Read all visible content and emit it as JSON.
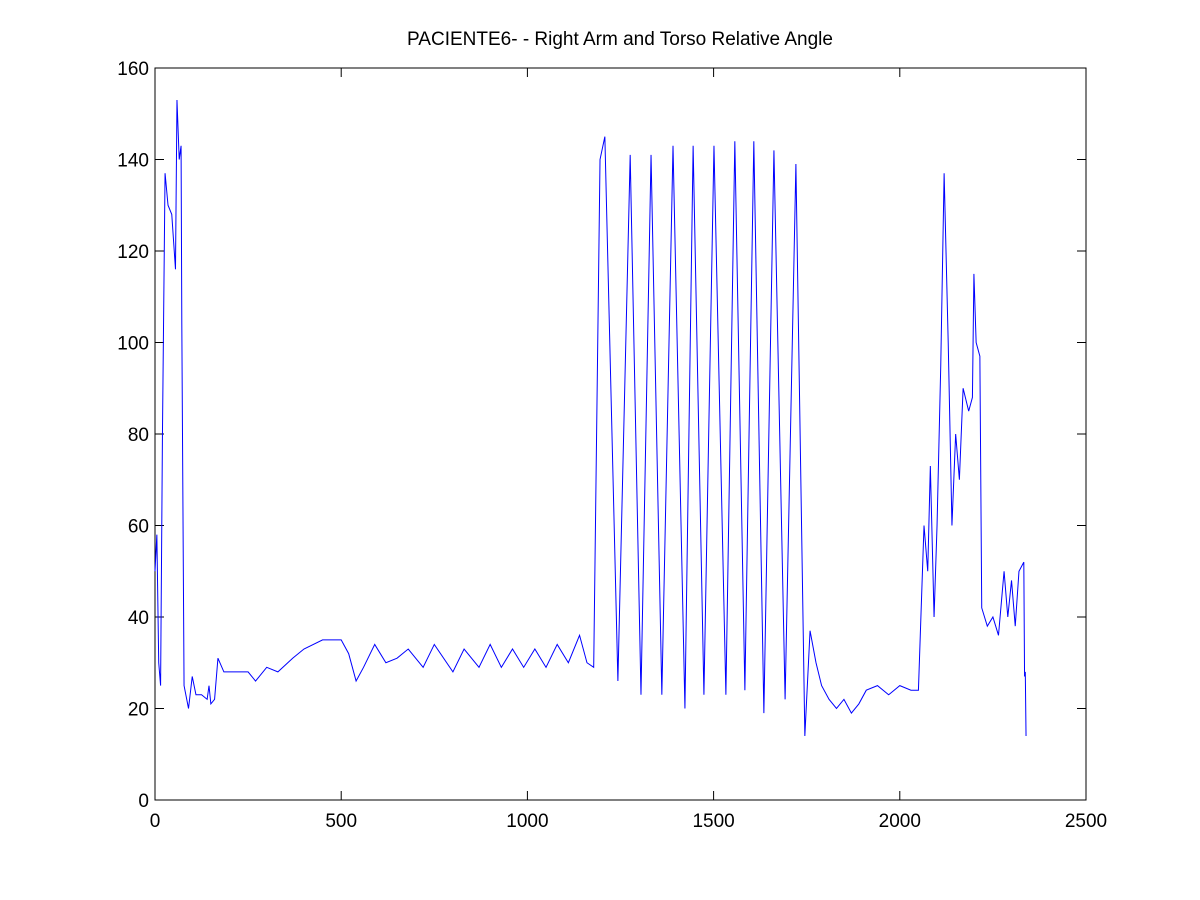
{
  "chart_data": {
    "type": "line",
    "title": "PACIENTE6- - Right Arm and Torso Relative Angle",
    "xlim": [
      0,
      2500
    ],
    "xticks": [
      0,
      500,
      1000,
      1500,
      2000,
      2500
    ],
    "ylim": [
      0,
      160
    ],
    "yticks": [
      0,
      20,
      40,
      60,
      80,
      100,
      120,
      140,
      160
    ],
    "grid": false,
    "series": [
      {
        "color": "#0000ff",
        "x": [
          0,
          5,
          10,
          15,
          20,
          27,
          35,
          45,
          55,
          59,
          65,
          70,
          72,
          78,
          90,
          100,
          110,
          125,
          140,
          145,
          150,
          160,
          169,
          185,
          200,
          250,
          270,
          300,
          330,
          370,
          400,
          450,
          500,
          520,
          540,
          560,
          590,
          620,
          650,
          680,
          720,
          750,
          800,
          830,
          870,
          900,
          930,
          960,
          990,
          1020,
          1050,
          1080,
          1110,
          1140,
          1160,
          1178,
          1195,
          1208,
          1243,
          1276,
          1305,
          1332,
          1361,
          1391,
          1423,
          1445,
          1474,
          1501,
          1533,
          1557,
          1584,
          1608,
          1635,
          1662,
          1692,
          1721,
          1745,
          1759,
          1775,
          1790,
          1810,
          1830,
          1850,
          1870,
          1890,
          1910,
          1940,
          1970,
          2000,
          2030,
          2050,
          2065,
          2075,
          2082,
          2092,
          2100,
          2110,
          2119,
          2130,
          2140,
          2150,
          2160,
          2170,
          2185,
          2195,
          2199,
          2205,
          2215,
          2220,
          2235,
          2250,
          2265,
          2280,
          2290,
          2300,
          2310,
          2320,
          2333,
          2335,
          2337,
          2339
        ],
        "values": [
          50,
          58,
          30,
          25,
          80,
          137,
          130,
          128,
          116,
          153,
          140,
          143,
          104,
          25,
          20,
          27,
          23,
          23,
          22,
          25,
          21,
          22,
          31,
          28,
          28,
          28,
          26,
          29,
          28,
          31,
          33,
          35,
          35,
          32,
          26,
          29,
          34,
          30,
          31,
          33,
          29,
          34,
          28,
          33,
          29,
          34,
          29,
          33,
          29,
          33,
          29,
          34,
          30,
          36,
          30,
          29,
          140,
          145,
          26,
          141,
          23,
          141,
          23,
          143,
          20,
          143,
          23,
          143,
          23,
          144,
          24,
          144,
          19,
          142,
          22,
          139,
          14,
          37,
          30,
          25,
          22,
          20,
          22,
          19,
          21,
          24,
          25,
          23,
          25,
          24,
          24,
          60,
          50,
          73,
          40,
          60,
          95,
          137,
          100,
          60,
          80,
          70,
          90,
          85,
          88,
          115,
          100,
          97,
          42,
          38,
          40,
          36,
          50,
          40,
          48,
          38,
          50,
          52,
          27,
          28,
          14
        ]
      }
    ]
  }
}
